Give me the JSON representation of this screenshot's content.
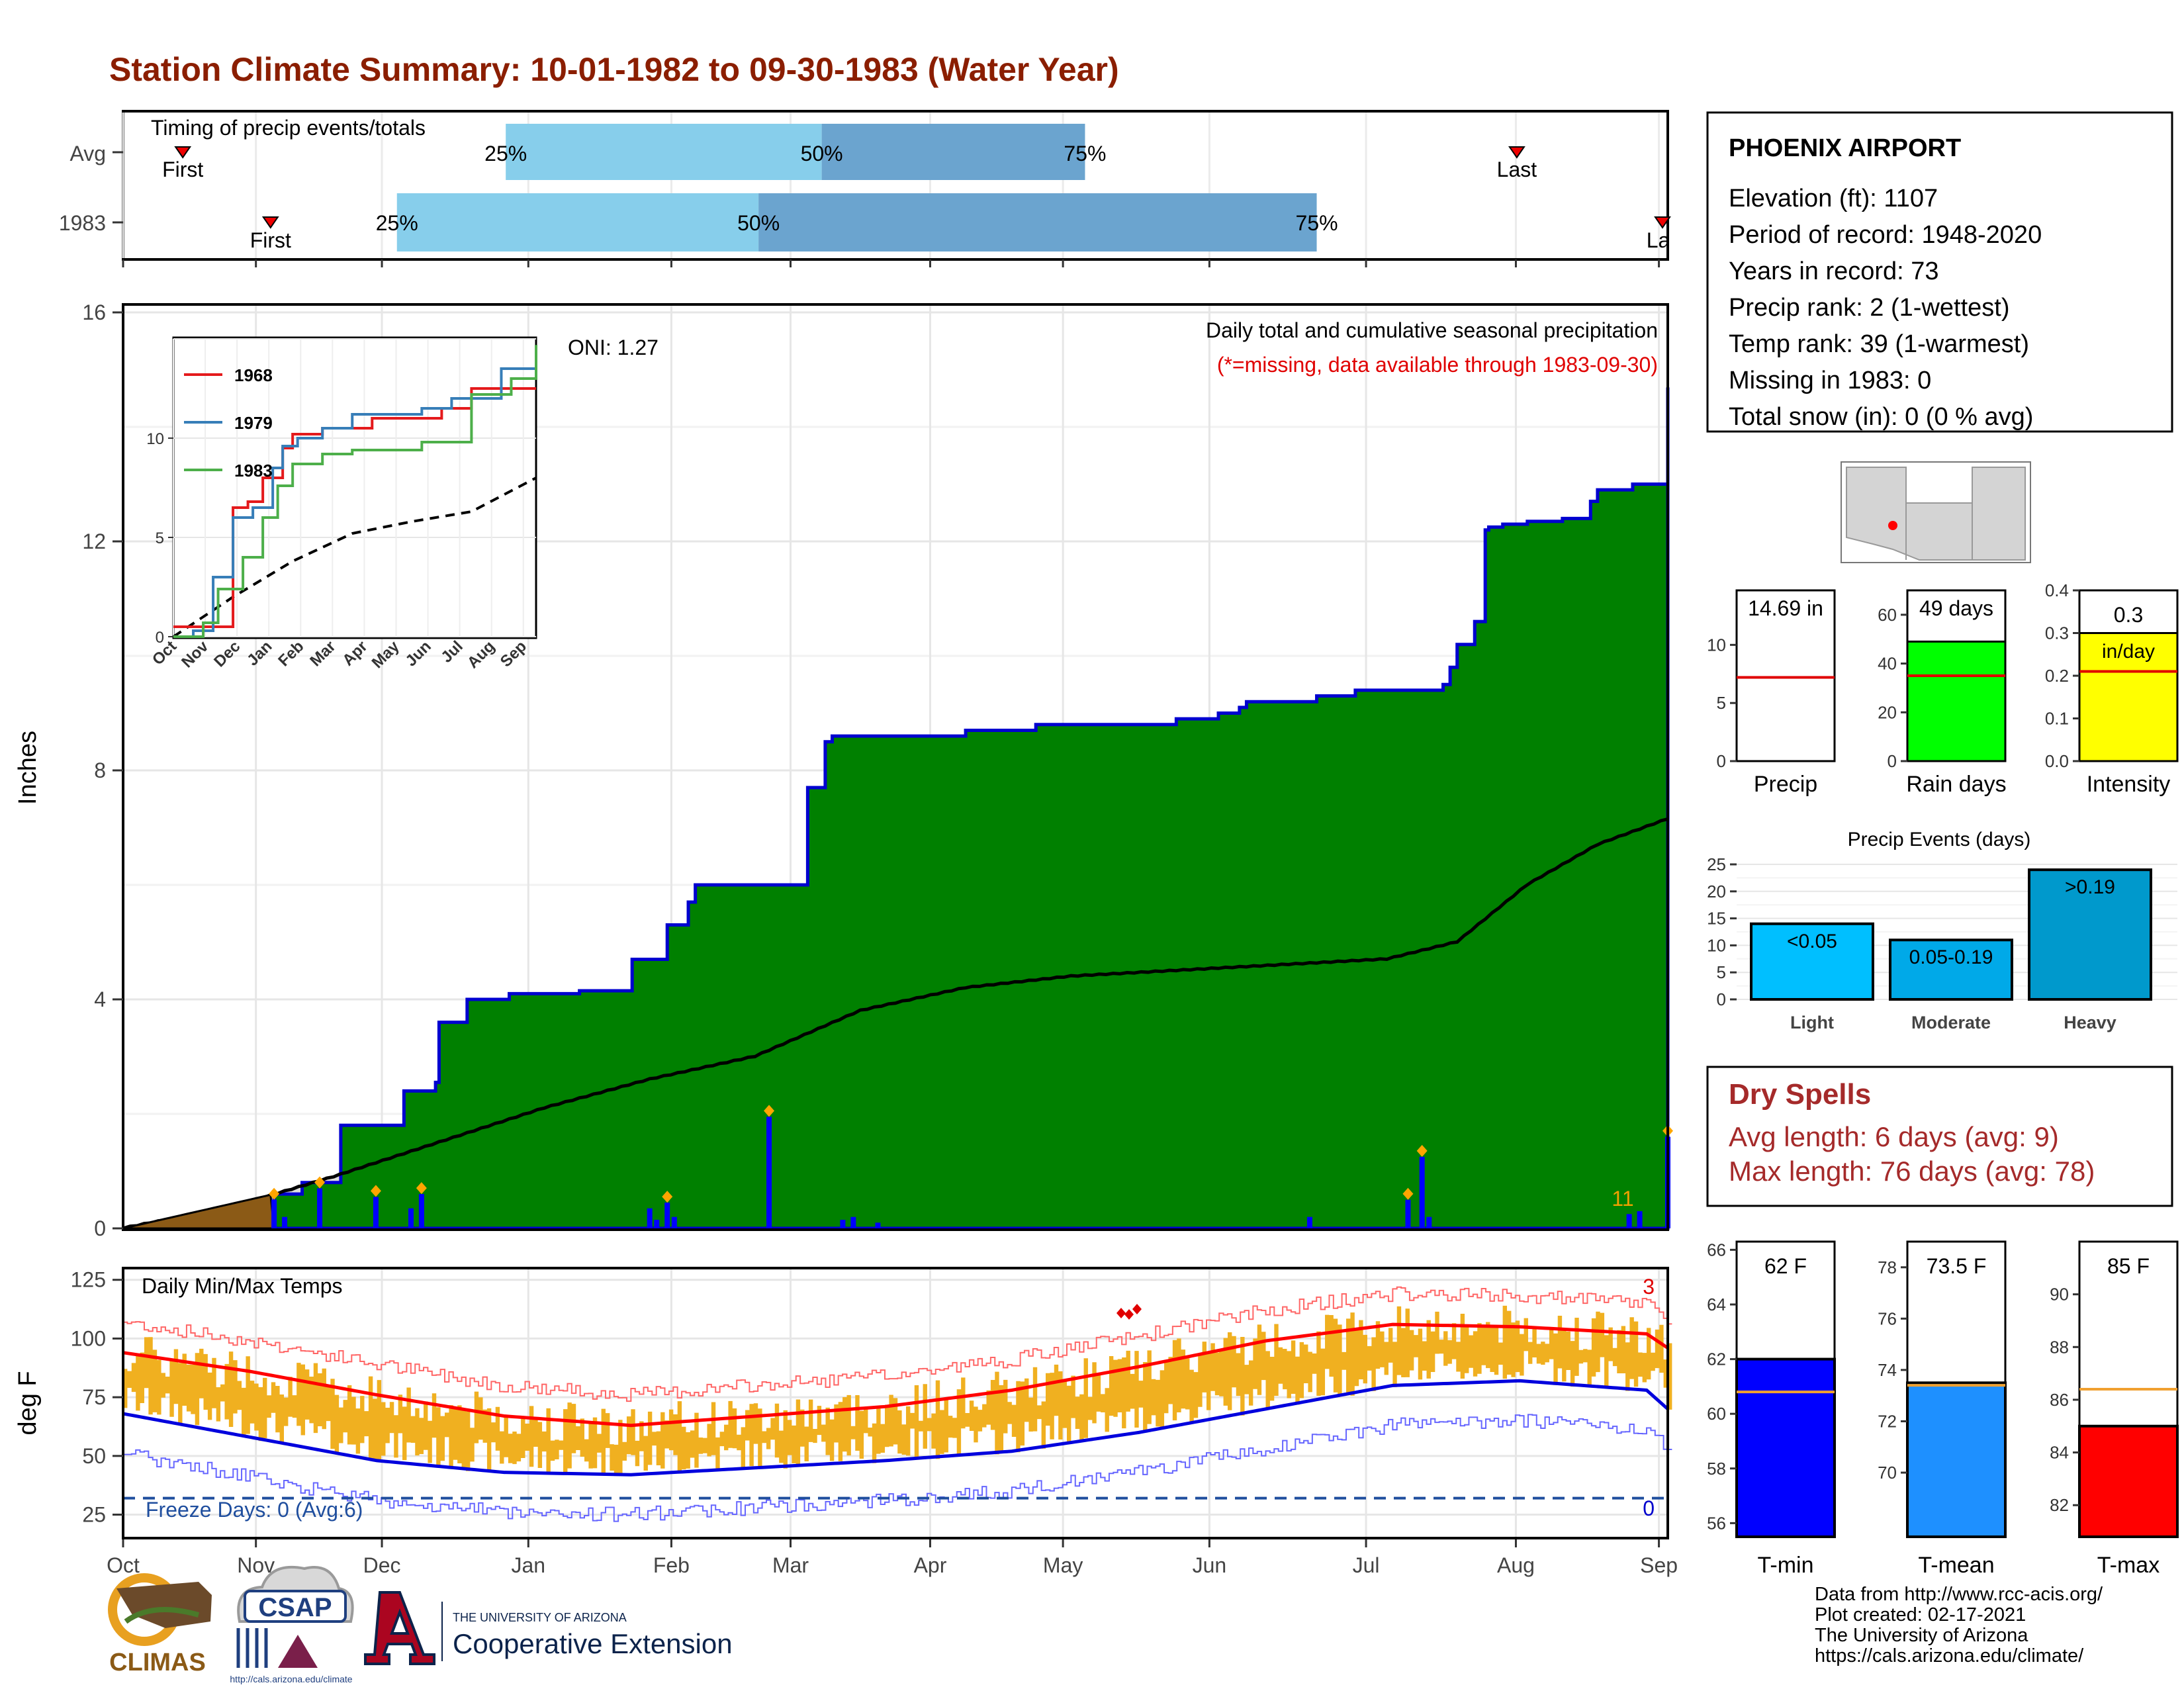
{
  "title": "Station Climate Summary: 10-01-1982 to 09-30-1983 (Water Year)",
  "timing": {
    "panel_label": "Timing of precip events/totals",
    "rows": [
      {
        "label": "Avg",
        "first": "First",
        "last": "Last",
        "p25": "25%",
        "p50": "50%",
        "p75": "75%",
        "first_day": 17,
        "p25_day": 109,
        "p50_day": 199,
        "p75_day": 274,
        "last_day": 397
      },
      {
        "label": "1983",
        "first": "First",
        "last": "Last",
        "p25": "25%",
        "p50": "50%",
        "p75": "75%",
        "first_day": 42,
        "p25_day": 78,
        "p50_day": 181,
        "p75_day": 340,
        "last_day": 440
      }
    ]
  },
  "main": {
    "ylabel": "Inches",
    "oni": "ONI: 1.27",
    "subtitle": "Daily total and cumulative seasonal precipitation",
    "missing_note": "(*=missing, data available through 1983-09-30)",
    "marker_label": "11",
    "yticks": [
      "0",
      "4",
      "8",
      "12",
      "16"
    ],
    "months": [
      "Oct",
      "Nov",
      "Dec",
      "Jan",
      "Feb",
      "Mar",
      "Apr",
      "May",
      "Jun",
      "Jul",
      "Aug",
      "Sep"
    ]
  },
  "inset": {
    "yticks": [
      "0",
      "5",
      "10"
    ],
    "months": [
      "Oct",
      "Nov",
      "Dec",
      "Jan",
      "Feb",
      "Mar",
      "Apr",
      "May",
      "Jun",
      "Jul",
      "Aug",
      "Sep"
    ],
    "legend": [
      {
        "name": "1968",
        "color": "#e41a1c"
      },
      {
        "name": "1979",
        "color": "#377eb8"
      },
      {
        "name": "1983",
        "color": "#4daf4a"
      }
    ]
  },
  "station": {
    "name": "PHOENIX AIRPORT",
    "lines": [
      "Elevation (ft): 1107",
      "Period of record: 1948-2020",
      "Years in record: 73",
      "Precip rank: 2 (1-wettest)",
      "Temp rank: 39 (1-warmest)",
      "Missing in 1983: 0",
      "Total snow (in): 0 (0 % avg)"
    ]
  },
  "summary_bars": [
    {
      "label": "Precip",
      "value_label": "14.69 in",
      "value": 14.69,
      "avg": 7.2,
      "max": 14.69,
      "yticks": [
        "0",
        "5",
        "10"
      ],
      "color": "#ffffff"
    },
    {
      "label": "Rain days",
      "value_label": "49 days",
      "value": 49,
      "avg": 35,
      "max": 70,
      "yticks": [
        "0",
        "20",
        "40",
        "60"
      ],
      "color": "#00ff00"
    },
    {
      "label": "Intensity",
      "value_label": "0.3",
      "unit": "in/day",
      "value": 0.3,
      "avg": 0.21,
      "max": 0.4,
      "yticks": [
        "0.0",
        "0.1",
        "0.2",
        "0.3",
        "0.4"
      ],
      "color": "#ffff00"
    }
  ],
  "events": {
    "title": "Precip Events (days)",
    "yticks": [
      "0",
      "5",
      "10",
      "15",
      "20",
      "25"
    ],
    "bars": [
      {
        "category": "Light",
        "label": "<0.05",
        "value": 14,
        "color": "#00bfff"
      },
      {
        "category": "Moderate",
        "label": "0.05-0.19",
        "value": 11,
        "color": "#00a9e8"
      },
      {
        "category": "Heavy",
        "label": ">0.19",
        "value": 24,
        "color": "#0099cc"
      }
    ]
  },
  "dry_spells": {
    "title": "Dry Spells",
    "avg_length": "Avg length: 6 days (avg: 9)",
    "max_length": "Max length: 76 days (avg: 78)"
  },
  "temps": {
    "ylabel": "deg F",
    "panel_label": "Daily Min/Max Temps",
    "freeze": "Freeze Days: 0 (Avg:6)",
    "count_max": "3",
    "count_min": "0",
    "yticks": [
      "25",
      "50",
      "75",
      "100",
      "125"
    ]
  },
  "temp_bars": [
    {
      "label": "T-min",
      "value_label": "62 F",
      "value": 62,
      "avg": 60.8,
      "min": 55.5,
      "max": 66.3,
      "yticks": [
        "56",
        "58",
        "60",
        "62",
        "64",
        "66"
      ],
      "color": "#0000ff"
    },
    {
      "label": "T-mean",
      "value_label": "73.5 F",
      "value": 73.5,
      "avg": 73.4,
      "min": 67.5,
      "max": 79,
      "yticks": [
        "70",
        "72",
        "74",
        "76",
        "78"
      ],
      "color": "#1e90ff"
    },
    {
      "label": "T-max",
      "value_label": "85 F",
      "value": 85,
      "avg": 86.4,
      "min": 80.8,
      "max": 92,
      "yticks": [
        "82",
        "84",
        "86",
        "88",
        "90"
      ],
      "color": "#ff0000"
    }
  ],
  "credits": {
    "lines": [
      "Data from http://www.rcc-acis.org/",
      "Plot created: 02-17-2021",
      "The University of Arizona",
      "https://cals.arizona.edu/climate/"
    ]
  },
  "logos": {
    "climas": "CLIMAS",
    "csap": "CSAP",
    "csap_url": "http://cals.arizona.edu/climate",
    "ua_top": "THE UNIVERSITY OF ARIZONA",
    "ua_bottom": "Cooperative Extension"
  },
  "chart_data": [
    {
      "type": "area",
      "title": "Daily total and cumulative seasonal precipitation",
      "ylabel": "Inches",
      "ylim": [
        0,
        16
      ],
      "x_unit": "day of water year (Oct 1 = 0)",
      "series": [
        {
          "name": "cumulative 1983",
          "color": "#008000",
          "x": [
            0,
            43,
            51,
            62,
            80,
            89,
            90,
            98,
            110,
            120,
            130,
            145,
            155,
            161,
            163,
            165,
            168,
            171,
            175,
            177,
            179,
            181,
            183,
            187,
            195,
            200,
            202,
            206,
            210,
            214,
            220,
            240,
            260,
            300,
            312,
            318,
            320,
            340,
            351,
            353,
            355,
            376,
            378,
            380,
            385,
            388,
            389,
            393,
            398,
            400,
            410,
            418,
            420,
            430,
            438,
            440
          ],
          "y": [
            0,
            0.6,
            0.8,
            1.8,
            2.4,
            2.55,
            3.6,
            4.0,
            4.1,
            4.1,
            4.15,
            4.7,
            5.3,
            5.7,
            6.0,
            6.0,
            6.0,
            6.0,
            6.0,
            6.0,
            6.0,
            6.0,
            6.0,
            6.0,
            7.7,
            8.5,
            8.6,
            8.6,
            8.6,
            8.6,
            8.6,
            8.7,
            8.8,
            8.9,
            9.0,
            9.1,
            9.2,
            9.3,
            9.4,
            9.4,
            9.4,
            9.5,
            9.8,
            10.2,
            10.6,
            12.2,
            12.25,
            12.3,
            12.3,
            12.35,
            12.4,
            12.7,
            12.9,
            13.0,
            13.0,
            14.69
          ]
        },
        {
          "name": "average cumulative",
          "color": "#000000",
          "x": [
            0,
            30,
            60,
            90,
            120,
            150,
            180,
            210,
            240,
            270,
            300,
            330,
            360,
            380,
            400,
            420,
            440
          ],
          "y": [
            0,
            0.35,
            0.9,
            1.5,
            2.1,
            2.6,
            3.0,
            3.8,
            4.2,
            4.4,
            4.5,
            4.6,
            4.7,
            5.0,
            6.0,
            6.7,
            7.15
          ]
        }
      ],
      "daily_precip": [
        {
          "x": 43,
          "y": 0.5
        },
        {
          "x": 46,
          "y": 0.2
        },
        {
          "x": 56,
          "y": 0.7
        },
        {
          "x": 72,
          "y": 0.55
        },
        {
          "x": 82,
          "y": 0.35
        },
        {
          "x": 85,
          "y": 0.6
        },
        {
          "x": 150,
          "y": 0.35
        },
        {
          "x": 152,
          "y": 0.15
        },
        {
          "x": 155,
          "y": 0.45
        },
        {
          "x": 157,
          "y": 0.2
        },
        {
          "x": 184,
          "y": 1.95
        },
        {
          "x": 205,
          "y": 0.15
        },
        {
          "x": 208,
          "y": 0.2
        },
        {
          "x": 215,
          "y": 0.1
        },
        {
          "x": 338,
          "y": 0.2
        },
        {
          "x": 366,
          "y": 0.5
        },
        {
          "x": 370,
          "y": 1.25
        },
        {
          "x": 372,
          "y": 0.2
        },
        {
          "x": 429,
          "y": 0.25
        },
        {
          "x": 432,
          "y": 0.3
        },
        {
          "x": 440,
          "y": 1.6
        }
      ]
    },
    {
      "type": "line",
      "title": "",
      "ylim": [
        0,
        15
      ],
      "series": [
        {
          "name": "1968",
          "x": [
            0,
            30,
            60,
            75,
            90,
            110,
            120,
            130,
            150,
            200,
            270,
            300,
            365
          ],
          "y": [
            0.5,
            0.5,
            6.5,
            6.8,
            8.0,
            9.5,
            10.2,
            10.2,
            10.5,
            11.0,
            11.5,
            12.5,
            12.5
          ]
        },
        {
          "name": "1979",
          "x": [
            0,
            20,
            40,
            60,
            80,
            100,
            110,
            125,
            150,
            180,
            250,
            280,
            330,
            365
          ],
          "y": [
            0,
            0.3,
            3.0,
            6.0,
            6.5,
            8.5,
            9.6,
            10.0,
            10.5,
            11.2,
            11.5,
            12.0,
            13.5,
            13.8
          ]
        },
        {
          "name": "1983",
          "x": [
            0,
            30,
            45,
            70,
            90,
            105,
            120,
            150,
            180,
            250,
            300,
            340,
            365
          ],
          "y": [
            0,
            0.7,
            2.4,
            4.0,
            6.0,
            7.6,
            8.7,
            9.2,
            9.4,
            9.8,
            12.2,
            13.0,
            14.69
          ]
        },
        {
          "name": "average",
          "x": [
            0,
            60,
            120,
            180,
            240,
            300,
            365
          ],
          "y": [
            0,
            2.0,
            3.8,
            5.2,
            5.8,
            6.3,
            8.0
          ]
        }
      ]
    },
    {
      "type": "bar",
      "title": "Precip Events (days)",
      "categories": [
        "Light",
        "Moderate",
        "Heavy"
      ],
      "values": [
        14,
        11,
        24
      ],
      "ylim": [
        0,
        25
      ]
    },
    {
      "type": "line",
      "title": "Daily Min/Max Temps",
      "ylabel": "deg F",
      "ylim": [
        15,
        130
      ],
      "series": [
        {
          "name": "avg max",
          "color": "#ff0000",
          "x": [
            0,
            30,
            60,
            90,
            120,
            150,
            180,
            210,
            240,
            270,
            300,
            330,
            360,
            365
          ],
          "y": [
            94,
            86,
            76,
            67,
            63,
            67,
            71,
            78,
            88,
            99,
            106,
            105,
            102,
            96
          ]
        },
        {
          "name": "avg min",
          "color": "#0000ff",
          "x": [
            0,
            30,
            60,
            90,
            120,
            150,
            180,
            210,
            240,
            270,
            300,
            330,
            360,
            365
          ],
          "y": [
            68,
            58,
            48,
            43,
            42,
            45,
            48,
            52,
            60,
            70,
            80,
            82,
            78,
            70
          ]
        },
        {
          "name": "freeze line",
          "color": "#1f4e9e",
          "x": [
            0,
            365
          ],
          "y": [
            32,
            32
          ]
        }
      ]
    }
  ]
}
